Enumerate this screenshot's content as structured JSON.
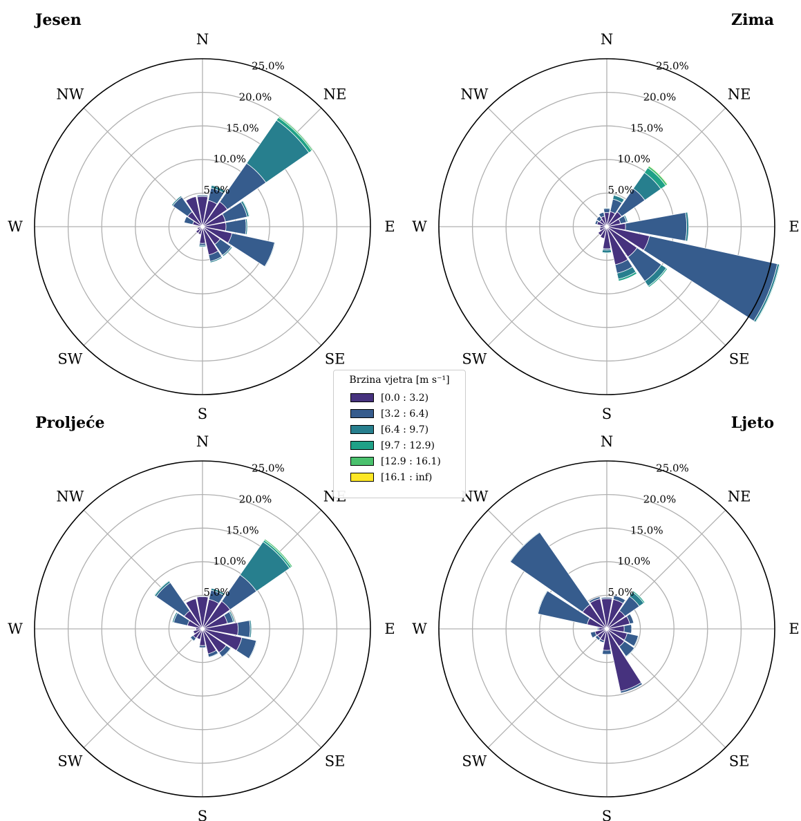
{
  "chart_data": {
    "type": "windrose",
    "ring_ticks": [
      5.0,
      10.0,
      15.0,
      20.0,
      25.0
    ],
    "ring_tick_labels": [
      "5.0%",
      "10.0%",
      "15.0%",
      "20.0%",
      "25.0%"
    ],
    "rmax": 25,
    "grid": true,
    "direction_labels": [
      "N",
      "NE",
      "E",
      "SE",
      "S",
      "SW",
      "W",
      "NW"
    ],
    "directions_deg": [
      0,
      22.5,
      45,
      67.5,
      90,
      112.5,
      135,
      157.5,
      180,
      202.5,
      225,
      247.5,
      270,
      292.5,
      315,
      337.5
    ],
    "bins": [
      "[0.0 : 3.2)",
      "[3.2 : 6.4)",
      "[6.4 : 9.7)",
      "[9.7 : 12.9)",
      "[12.9 : 16.1)",
      "[16.1 : inf)"
    ],
    "colors": [
      "#46327e",
      "#365c8d",
      "#277f8e",
      "#1fa187",
      "#4ac16d",
      "#fde725"
    ],
    "legend": {
      "title": "Brzina vjetra [m s⁻¹]",
      "placement": "center"
    },
    "panels": [
      {
        "title": "Jesen",
        "title_align": "left",
        "values": [
          [
            4.5,
            0.2,
            0.1,
            0,
            0,
            0
          ],
          [
            4.0,
            1.9,
            0.4,
            0.1,
            0,
            0
          ],
          [
            4.5,
            7.0,
            7.8,
            0.5,
            0.2,
            0
          ],
          [
            3.5,
            3.3,
            0.3,
            0.1,
            0,
            0
          ],
          [
            3.5,
            3.0,
            0.2,
            0,
            0,
            0
          ],
          [
            4.5,
            6.5,
            0.1,
            0,
            0,
            0
          ],
          [
            3.2,
            2.0,
            0.2,
            0,
            0,
            0
          ],
          [
            4.3,
            1.0,
            0.2,
            0,
            0,
            0
          ],
          [
            2.5,
            0.3,
            0.2,
            0,
            0,
            0
          ],
          [
            1.2,
            0,
            0,
            0,
            0,
            0
          ],
          [
            1.2,
            0,
            0,
            0,
            0,
            0
          ],
          [
            0.8,
            0,
            0,
            0,
            0,
            0
          ],
          [
            0.5,
            0,
            0,
            0,
            0,
            0
          ],
          [
            1.5,
            1.3,
            0,
            0,
            0,
            0
          ],
          [
            2.7,
            2.7,
            0.2,
            0,
            0,
            0
          ],
          [
            4.6,
            0,
            0,
            0,
            0,
            0
          ]
        ]
      },
      {
        "title": "Zima",
        "title_align": "right",
        "values": [
          [
            2.1,
            0.6,
            0.1,
            0,
            0,
            0
          ],
          [
            2.3,
            1.9,
            0.6,
            0.1,
            0,
            0
          ],
          [
            2.7,
            4.2,
            2.9,
            0.9,
            0.3,
            0.1
          ],
          [
            2.1,
            0.9,
            0.2,
            0,
            0,
            0
          ],
          [
            2.8,
            9.1,
            0.3,
            0,
            0,
            0
          ],
          [
            6.5,
            19.5,
            0.3,
            0.1,
            0,
            0
          ],
          [
            5.5,
            4.4,
            0.9,
            0.2,
            0,
            0
          ],
          [
            5.8,
            1.3,
            0.9,
            0.3,
            0,
            0
          ],
          [
            3.3,
            0.2,
            0.4,
            0.1,
            0,
            0
          ],
          [
            1.8,
            0,
            0,
            0,
            0,
            0
          ],
          [
            1.6,
            0,
            0,
            0,
            0,
            0
          ],
          [
            1.1,
            0,
            0,
            0,
            0,
            0
          ],
          [
            1.0,
            0,
            0,
            0,
            0,
            0
          ],
          [
            1.5,
            0.3,
            0,
            0,
            0,
            0
          ],
          [
            1.3,
            0.6,
            0,
            0,
            0,
            0
          ],
          [
            1.6,
            0.6,
            0,
            0,
            0,
            0
          ]
        ]
      },
      {
        "title": "Proljeće",
        "title_align": "left",
        "values": [
          [
            4.8,
            0.1,
            0,
            0,
            0,
            0
          ],
          [
            4.5,
            1.4,
            0.3,
            0,
            0,
            0
          ],
          [
            5.0,
            4.8,
            6.0,
            0.3,
            0.2,
            0
          ],
          [
            3.8,
            0.9,
            0.2,
            0,
            0,
            0
          ],
          [
            5.3,
            1.8,
            0.2,
            0,
            0,
            0
          ],
          [
            6.0,
            2.2,
            0.1,
            0,
            0,
            0
          ],
          [
            4.3,
            0.8,
            0.1,
            0,
            0,
            0
          ],
          [
            3.8,
            0.5,
            0.1,
            0,
            0,
            0
          ],
          [
            2.5,
            0.3,
            0,
            0,
            0,
            0
          ],
          [
            1.6,
            0,
            0,
            0,
            0,
            0
          ],
          [
            1.7,
            0.5,
            0.1,
            0,
            0,
            0
          ],
          [
            1.4,
            0.1,
            0,
            0,
            0,
            0
          ],
          [
            1.0,
            0.1,
            0,
            0,
            0,
            0
          ],
          [
            2.3,
            2.1,
            0.2,
            0,
            0,
            0
          ],
          [
            3.3,
            5.1,
            0.3,
            0.1,
            0,
            0
          ],
          [
            4.6,
            0,
            0,
            0,
            0,
            0
          ]
        ]
      },
      {
        "title": "Ljeto",
        "title_align": "right",
        "values": [
          [
            4.5,
            0.2,
            0,
            0,
            0,
            0
          ],
          [
            4.5,
            0.6,
            0,
            0,
            0,
            0
          ],
          [
            3.3,
            2.6,
            0.8,
            0.2,
            0,
            0
          ],
          [
            3.5,
            0.6,
            0,
            0,
            0,
            0
          ],
          [
            2.6,
            1.1,
            0,
            0,
            0,
            0
          ],
          [
            3.1,
            1.7,
            0.1,
            0,
            0,
            0
          ],
          [
            3.2,
            1.8,
            0.1,
            0,
            0,
            0
          ],
          [
            9.5,
            0.3,
            0,
            0,
            0,
            0
          ],
          [
            3.2,
            0.6,
            0,
            0,
            0,
            0
          ],
          [
            1.8,
            0.3,
            0,
            0,
            0,
            0
          ],
          [
            1.7,
            0.4,
            0,
            0,
            0,
            0
          ],
          [
            1.8,
            0.7,
            0,
            0,
            0,
            0
          ],
          [
            1.2,
            0.2,
            0,
            0,
            0,
            0
          ],
          [
            3.0,
            7.5,
            0.1,
            0,
            0,
            0
          ],
          [
            4.4,
            13.1,
            0.1,
            0,
            0,
            0
          ],
          [
            4.6,
            0.3,
            0,
            0,
            0,
            0
          ]
        ]
      }
    ]
  }
}
